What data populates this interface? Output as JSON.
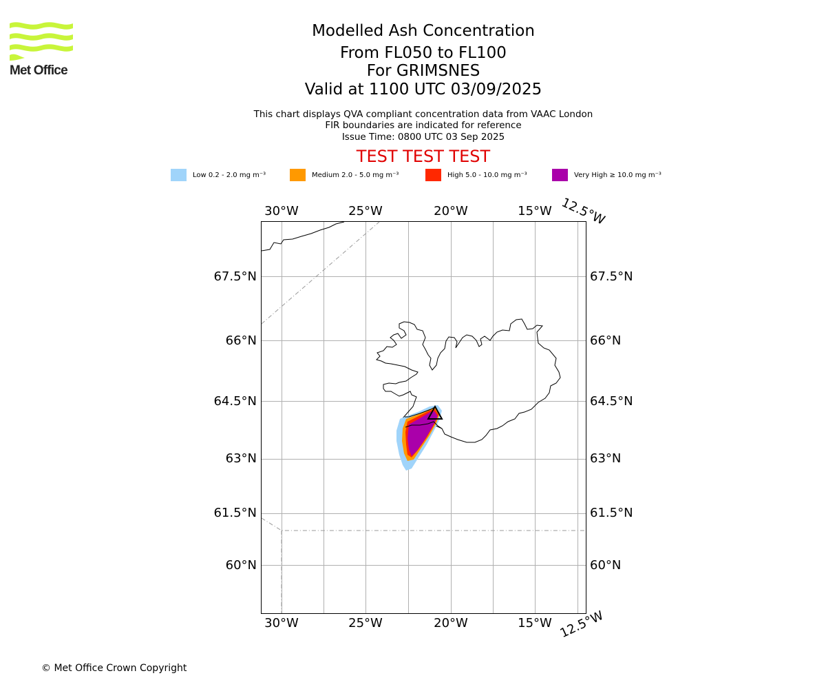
{
  "logo": {
    "text": "Met Office",
    "icon": "met-office-wave-logo",
    "color": "#c8f53a"
  },
  "header": {
    "title": "Modelled Ash Concentration",
    "level_range": "From FL050 to FL100",
    "volcano": "For GRIMSNES",
    "valid_time": "Valid at 1100 UTC 03/09/2025"
  },
  "notes": {
    "line1": "This chart displays QVA compliant concentration data from VAAC London",
    "line2": "FIR boundaries are indicated for reference",
    "issue_time": "Issue Time: 0800 UTC 03 Sep 2025"
  },
  "test_banner": "TEST TEST TEST",
  "legend": [
    {
      "label": "Low 0.2 - 2.0 mg m⁻³",
      "color": "#a0d4fa"
    },
    {
      "label": "Medium 2.0 - 5.0 mg m⁻³",
      "color": "#ff9900"
    },
    {
      "label": "High 5.0 - 10.0 mg m⁻³",
      "color": "#ff2800"
    },
    {
      "label": "Very High ≥ 10.0 mg m⁻³",
      "color": "#aa00aa"
    }
  ],
  "map": {
    "lon_labels_top": [
      "30°W",
      "25°W",
      "20°W",
      "15°W",
      "12.5°W"
    ],
    "lon_labels_bottom": [
      "30°W",
      "25°W",
      "20°W",
      "15°W",
      "12.5°W"
    ],
    "lat_labels": [
      "67.5°N",
      "66°N",
      "64.5°N",
      "63°N",
      "61.5°N",
      "60°N"
    ],
    "grid": true,
    "volcano_marker": "triangle-icon"
  },
  "copyright": "© Met Office Crown Copyright"
}
